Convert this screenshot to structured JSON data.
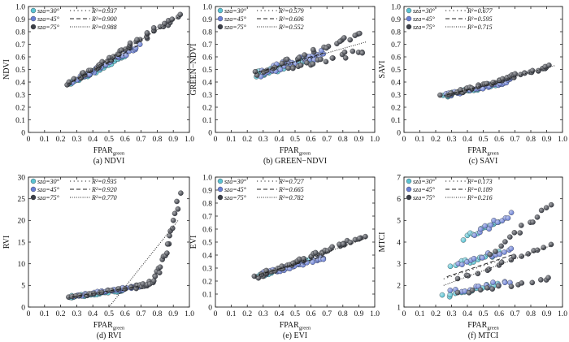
{
  "chart_data": [
    {
      "type": "scatter",
      "caption": "(a) NDVI",
      "xlabel": "FPAR",
      "xlabel_sub": "green",
      "ylabel": "NDVI",
      "xlim": [
        0,
        1.0
      ],
      "ylim": [
        0,
        1.0
      ],
      "xticks": [
        "0",
        "0.1",
        "0.2",
        "0.3",
        "0.4",
        "0.5",
        "0.6",
        "0.7",
        "0.8",
        "0.9",
        "1.0"
      ],
      "yticks": [
        "0",
        "0.1",
        "0.2",
        "0.3",
        "0.4",
        "0.5",
        "0.6",
        "0.7",
        "0.8",
        "0.9",
        "1.0"
      ],
      "legend_position": "top-left",
      "series": [
        {
          "name": "sza=30°",
          "r2_label": "R²=0.937",
          "color": "#5bc3d3",
          "linestyle": "dot-spaced",
          "fit": [
            [
              0.25,
              0.39
            ],
            [
              0.62,
              0.63
            ]
          ],
          "clusters": [
            {
              "x": [
                0.26,
                0.6
              ],
              "y": [
                0.39,
                0.61
              ],
              "n": 38,
              "jitter": 0.012
            }
          ]
        },
        {
          "name": "sza=45°",
          "r2_label": "R²=0.900",
          "color": "#6a7fd4",
          "linestyle": "dash",
          "fit": [
            [
              0.27,
              0.4
            ],
            [
              0.68,
              0.69
            ]
          ],
          "clusters": [
            {
              "x": [
                0.28,
                0.68
              ],
              "y": [
                0.4,
                0.69
              ],
              "n": 38,
              "jitter": 0.018
            }
          ]
        },
        {
          "name": "sza=75°",
          "r2_label": "R²=0.988",
          "color": "#3c3f47",
          "linestyle": "dotted",
          "fit": [
            [
              0.25,
              0.39
            ],
            [
              0.95,
              0.93
            ]
          ],
          "clusters": [
            {
              "x": [
                0.25,
                0.93
              ],
              "y": [
                0.38,
                0.93
              ],
              "n": 48,
              "jitter": 0.012
            }
          ]
        }
      ]
    },
    {
      "type": "scatter",
      "caption": "(b) GREEN−NDVI",
      "xlabel": "FPAR",
      "xlabel_sub": "green",
      "ylabel": "GREEN−NDVI",
      "xlim": [
        0,
        1.0
      ],
      "ylim": [
        0,
        1.0
      ],
      "xticks": [
        "0",
        "0.1",
        "0.2",
        "0.3",
        "0.4",
        "0.5",
        "0.6",
        "0.7",
        "0.8",
        "0.9",
        "1.0"
      ],
      "yticks": [
        "0",
        "0.1",
        "0.2",
        "0.3",
        "0.4",
        "0.5",
        "0.6",
        "0.7",
        "0.8",
        "0.9",
        "1.0"
      ],
      "legend_position": "top-left",
      "series": [
        {
          "name": "sza=30°",
          "r2_label": "R²=0.579",
          "color": "#5bc3d3",
          "linestyle": "dot-spaced",
          "fit": [
            [
              0.25,
              0.47
            ],
            [
              0.62,
              0.59
            ]
          ],
          "clusters": [
            {
              "x": [
                0.26,
                0.6
              ],
              "y": [
                0.46,
                0.58
              ],
              "n": 38,
              "jitter": 0.025
            }
          ]
        },
        {
          "name": "sza=45°",
          "r2_label": "R²=0.606",
          "color": "#6a7fd4",
          "linestyle": "dash",
          "fit": [
            [
              0.27,
              0.48
            ],
            [
              0.68,
              0.63
            ]
          ],
          "clusters": [
            {
              "x": [
                0.28,
                0.68
              ],
              "y": [
                0.47,
                0.63
              ],
              "n": 38,
              "jitter": 0.03
            }
          ]
        },
        {
          "name": "sza=75°",
          "r2_label": "R²=0.552",
          "color": "#3c3f47",
          "linestyle": "dotted",
          "fit": [
            [
              0.25,
              0.47
            ],
            [
              0.95,
              0.72
            ]
          ],
          "clusters": [
            {
              "x": [
                0.25,
                0.93
              ],
              "y": [
                0.47,
                0.79
              ],
              "n": 26,
              "jitter": 0.02
            },
            {
              "x": [
                0.45,
                0.93
              ],
              "y": [
                0.5,
                0.65
              ],
              "n": 20,
              "jitter": 0.02
            }
          ]
        }
      ]
    },
    {
      "type": "scatter",
      "caption": "(c) SAVI",
      "xlabel": "FPAR",
      "xlabel_sub": "green",
      "ylabel": "SAVI",
      "xlim": [
        0,
        1.0
      ],
      "ylim": [
        0,
        1.0
      ],
      "xticks": [
        "0",
        "0.1",
        "0.2",
        "0.3",
        "0.4",
        "0.5",
        "0.6",
        "0.7",
        "0.8",
        "0.9",
        "1.0"
      ],
      "yticks": [
        "0",
        "0.1",
        "0.2",
        "0.3",
        "0.4",
        "0.5",
        "0.6",
        "0.7",
        "0.8",
        "0.9",
        "1.0"
      ],
      "legend_position": "top-left",
      "series": [
        {
          "name": "sza=30°",
          "r2_label": "R²=0.677",
          "color": "#5bc3d3",
          "linestyle": "dot-spaced",
          "fit": [
            [
              0.25,
              0.29
            ],
            [
              0.62,
              0.4
            ]
          ],
          "clusters": [
            {
              "x": [
                0.26,
                0.6
              ],
              "y": [
                0.29,
                0.39
              ],
              "n": 38,
              "jitter": 0.012
            }
          ]
        },
        {
          "name": "sza=45°",
          "r2_label": "R²=0.595",
          "color": "#6a7fd4",
          "linestyle": "dash",
          "fit": [
            [
              0.27,
              0.3
            ],
            [
              0.68,
              0.42
            ]
          ],
          "clusters": [
            {
              "x": [
                0.28,
                0.68
              ],
              "y": [
                0.3,
                0.41
              ],
              "n": 38,
              "jitter": 0.015
            }
          ]
        },
        {
          "name": "sza=75°",
          "r2_label": "R²=0.715",
          "color": "#3c3f47",
          "linestyle": "dotted",
          "fit": [
            [
              0.25,
              0.29
            ],
            [
              0.95,
              0.53
            ]
          ],
          "clusters": [
            {
              "x": [
                0.25,
                0.93
              ],
              "y": [
                0.29,
                0.53
              ],
              "n": 48,
              "jitter": 0.01
            }
          ]
        }
      ]
    },
    {
      "type": "scatter",
      "caption": "(d) RVI",
      "xlabel": "FPAR",
      "xlabel_sub": "green",
      "ylabel": "RVI",
      "xlim": [
        0,
        1.0
      ],
      "ylim": [
        0,
        30
      ],
      "xticks": [
        "0",
        "0.1",
        "0.2",
        "0.3",
        "0.4",
        "0.5",
        "0.6",
        "0.7",
        "0.8",
        "0.9",
        "1.0"
      ],
      "yticks": [
        "0",
        "5",
        "10",
        "15",
        "20",
        "25",
        "30"
      ],
      "legend_position": "top-left",
      "series": [
        {
          "name": "sza=30°",
          "r2_label": "R²=0.935",
          "color": "#5bc3d3",
          "linestyle": "dot-spaced",
          "fit": [
            [
              0.25,
              2.2
            ],
            [
              0.62,
              4.0
            ]
          ],
          "clusters": [
            {
              "x": [
                0.26,
                0.6
              ],
              "y": [
                2.3,
                4.0
              ],
              "n": 36,
              "jitter": 0.25
            }
          ]
        },
        {
          "name": "sza=45°",
          "r2_label": "R²=0.920",
          "color": "#6a7fd4",
          "linestyle": "dash",
          "fit": [
            [
              0.27,
              2.4
            ],
            [
              0.68,
              4.8
            ]
          ],
          "clusters": [
            {
              "x": [
                0.28,
                0.68
              ],
              "y": [
                2.4,
                4.8
              ],
              "n": 36,
              "jitter": 0.3
            }
          ]
        },
        {
          "name": "sza=75°",
          "r2_label": "R²=0.770",
          "color": "#3c3f47",
          "linestyle": "dotted",
          "fit": [
            [
              0.5,
              0.0
            ],
            [
              0.93,
              20.0
            ]
          ],
          "clusters": [
            {
              "x": [
                0.25,
                0.66
              ],
              "y": [
                2.3,
                4.7
              ],
              "n": 18,
              "jitter": 0.2
            },
            {
              "x": [
                0.67,
                0.94
              ],
              "y": [
                4.7,
                26.0
              ],
              "n": 34,
              "jitter": 0.6,
              "curve": 2.6
            }
          ]
        }
      ]
    },
    {
      "type": "scatter",
      "caption": "(e) EVI",
      "xlabel": "FPAR",
      "xlabel_sub": "green",
      "ylabel": "EVI",
      "xlim": [
        0,
        1.0
      ],
      "ylim": [
        0,
        1.0
      ],
      "xticks": [
        "0",
        "0.1",
        "0.2",
        "0.3",
        "0.4",
        "0.5",
        "0.6",
        "0.7",
        "0.8",
        "0.9",
        "1.0"
      ],
      "yticks": [
        "0",
        "0.1",
        "0.2",
        "0.3",
        "0.4",
        "0.5",
        "0.6",
        "0.7",
        "0.8",
        "0.9",
        "1.0"
      ],
      "legend_position": "top-left",
      "series": [
        {
          "name": "sza=30°",
          "r2_label": "R²=0.727",
          "color": "#5bc3d3",
          "linestyle": "dot-spaced",
          "fit": [
            [
              0.25,
              0.24
            ],
            [
              0.62,
              0.37
            ]
          ],
          "clusters": [
            {
              "x": [
                0.26,
                0.6
              ],
              "y": [
                0.24,
                0.36
              ],
              "n": 38,
              "jitter": 0.012
            }
          ]
        },
        {
          "name": "sza=45°",
          "r2_label": "R²=0.665",
          "color": "#6a7fd4",
          "linestyle": "dash",
          "fit": [
            [
              0.27,
              0.25
            ],
            [
              0.68,
              0.39
            ]
          ],
          "clusters": [
            {
              "x": [
                0.28,
                0.68
              ],
              "y": [
                0.25,
                0.38
              ],
              "n": 38,
              "jitter": 0.015
            }
          ]
        },
        {
          "name": "sza=75°",
          "r2_label": "R²=0.782",
          "color": "#3c3f47",
          "linestyle": "dotted",
          "fit": [
            [
              0.25,
              0.23
            ],
            [
              0.95,
              0.53
            ]
          ],
          "clusters": [
            {
              "x": [
                0.25,
                0.93
              ],
              "y": [
                0.23,
                0.54
              ],
              "n": 48,
              "jitter": 0.012
            }
          ]
        }
      ]
    },
    {
      "type": "scatter",
      "caption": "(f) MTCI",
      "xlabel": "FPAR",
      "xlabel_sub": "green",
      "ylabel": "MTCI",
      "xlim": [
        0,
        1.0
      ],
      "ylim": [
        1,
        7
      ],
      "xticks": [
        "0",
        "0.1",
        "0.2",
        "0.3",
        "0.4",
        "0.5",
        "0.6",
        "0.7",
        "0.8",
        "0.9",
        "1.0"
      ],
      "yticks": [
        "1",
        "2",
        "3",
        "4",
        "5",
        "6",
        "7"
      ],
      "legend_position": "top-left",
      "series": [
        {
          "name": "sza=30°",
          "r2_label": "R²=0.173",
          "color": "#5bc3d3",
          "linestyle": "dot-spaced",
          "fit": [
            [
              0.25,
              2.3
            ],
            [
              0.62,
              3.2
            ]
          ],
          "clusters": [
            {
              "x": [
                0.25,
                0.6
              ],
              "y": [
                1.5,
                2.1
              ],
              "n": 14,
              "jitter": 0.1
            },
            {
              "x": [
                0.3,
                0.6
              ],
              "y": [
                2.9,
                3.5
              ],
              "n": 14,
              "jitter": 0.12
            },
            {
              "x": [
                0.38,
                0.6
              ],
              "y": [
                4.2,
                4.9
              ],
              "n": 12,
              "jitter": 0.12
            }
          ]
        },
        {
          "name": "sza=45°",
          "r2_label": "R²=0.189",
          "color": "#6a7fd4",
          "linestyle": "dash",
          "fit": [
            [
              0.27,
              2.4
            ],
            [
              0.68,
              3.4
            ]
          ],
          "clusters": [
            {
              "x": [
                0.3,
                0.68
              ],
              "y": [
                1.7,
                2.2
              ],
              "n": 14,
              "jitter": 0.1
            },
            {
              "x": [
                0.35,
                0.68
              ],
              "y": [
                3.0,
                3.7
              ],
              "n": 14,
              "jitter": 0.12
            },
            {
              "x": [
                0.45,
                0.68
              ],
              "y": [
                4.4,
                5.3
              ],
              "n": 12,
              "jitter": 0.12
            }
          ]
        },
        {
          "name": "sza=75°",
          "r2_label": "R²=0.216",
          "color": "#3c3f47",
          "linestyle": "dotted",
          "fit": [
            [
              0.25,
              2.0
            ],
            [
              0.95,
              3.9
            ]
          ],
          "clusters": [
            {
              "x": [
                0.35,
                0.93
              ],
              "y": [
                1.6,
                2.3
              ],
              "n": 14,
              "jitter": 0.08
            },
            {
              "x": [
                0.35,
                0.93
              ],
              "y": [
                2.3,
                3.9
              ],
              "n": 16,
              "jitter": 0.1
            },
            {
              "x": [
                0.55,
                0.93
              ],
              "y": [
                3.5,
                5.7
              ],
              "n": 14,
              "jitter": 0.12
            }
          ]
        }
      ]
    }
  ]
}
